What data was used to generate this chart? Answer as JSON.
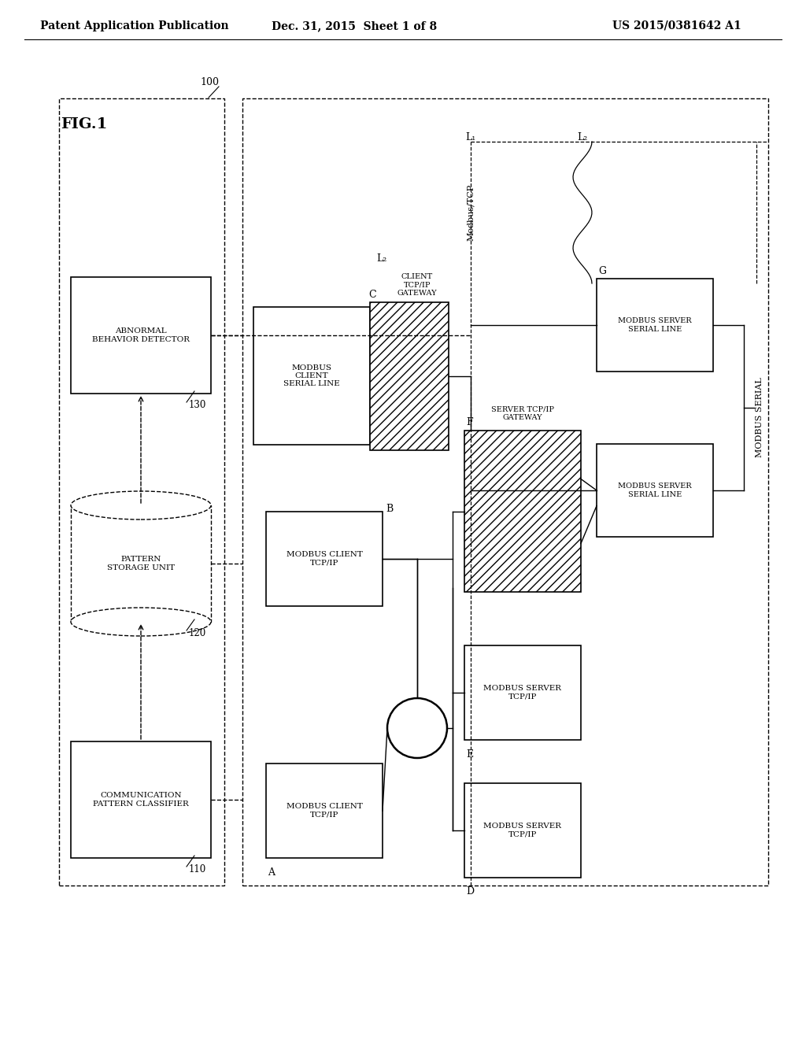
{
  "bg": "#ffffff",
  "header_left": "Patent Application Publication",
  "header_mid": "Dec. 31, 2015  Sheet 1 of 8",
  "header_right": "US 2015/0381642 A1",
  "fig_label": "FIG.1",
  "apparatus_label": "100",
  "labels": {
    "comm_classifier": "COMMUNICATION\nPATTERN CLASSIFIER",
    "pattern_storage": "PATTERN\nSTORAGE UNIT",
    "abnormal_detector": "ABNORMAL\nBEHAVIOR DETECTOR",
    "modbus_client_tcpip": "MODBUS CLIENT\nTCP/IP",
    "modbus_server_tcpip": "MODBUS SERVER\nTCP/IP",
    "modbus_client_serial": "MODBUS\nCLIENT\nSERIAL LINE",
    "client_tcp_gateway": "CLIENT\nTCP/IP\nGATEWAY",
    "server_tcp_gateway": "SERVER TCP/IP\nGATEWAY",
    "modbus_server_serial": "MODBUS SERVER\nSERIAL LINE",
    "modbus_serial_side": "MODBUS SERIAL",
    "modbus_tcp_label": "Modbus/TCP"
  }
}
